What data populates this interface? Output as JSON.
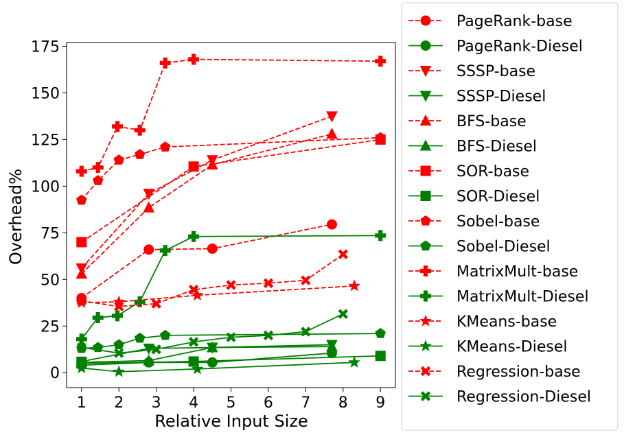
{
  "chart_data": {
    "type": "line",
    "title": "",
    "xlabel": "Relative Input Size",
    "ylabel": "Overhead%",
    "xlim": [
      0.6,
      9.4
    ],
    "ylim": [
      -8,
      177
    ],
    "xticks": [
      1,
      2,
      3,
      4,
      5,
      6,
      7,
      8,
      9
    ],
    "yticks": [
      0,
      25,
      50,
      75,
      100,
      125,
      150,
      175
    ],
    "grid": false,
    "legend_position": "outside-right",
    "series": [
      {
        "name": "PageRank-base",
        "color": "#ff0000",
        "dash": true,
        "marker": "circle",
        "x": [
          1,
          2.8,
          4.5,
          7.7
        ],
        "y": [
          40,
          66,
          66.5,
          79.5
        ]
      },
      {
        "name": "PageRank-Diesel",
        "color": "#008000",
        "dash": false,
        "marker": "circle",
        "x": [
          1,
          2.8,
          4.5,
          7.7
        ],
        "y": [
          4,
          5.5,
          5.5,
          10.5
        ]
      },
      {
        "name": "SSSP-base",
        "color": "#ff0000",
        "dash": true,
        "marker": "triangle-down",
        "x": [
          1,
          2.8,
          4.5,
          7.7
        ],
        "y": [
          56,
          96,
          114,
          137.5
        ]
      },
      {
        "name": "SSSP-Diesel",
        "color": "#008000",
        "dash": false,
        "marker": "triangle-down",
        "x": [
          1,
          2.8,
          4.5,
          7.7
        ],
        "y": [
          6,
          13,
          13.5,
          15
        ]
      },
      {
        "name": "BFS-base",
        "color": "#ff0000",
        "dash": true,
        "marker": "triangle-up",
        "x": [
          1,
          2.8,
          4.5,
          7.7
        ],
        "y": [
          53,
          88.5,
          111.5,
          128
        ]
      },
      {
        "name": "BFS-Diesel",
        "color": "#008000",
        "dash": false,
        "marker": "triangle-up",
        "x": [
          1,
          2.8,
          4.5,
          7.7
        ],
        "y": [
          5.5,
          6.5,
          13.5,
          14
        ]
      },
      {
        "name": "SOR-base",
        "color": "#ff0000",
        "dash": true,
        "marker": "square",
        "x": [
          1,
          4,
          9
        ],
        "y": [
          70,
          110.5,
          125
        ]
      },
      {
        "name": "SOR-Diesel",
        "color": "#008000",
        "dash": false,
        "marker": "square",
        "x": [
          1,
          4,
          9
        ],
        "y": [
          5,
          6,
          9
        ]
      },
      {
        "name": "Sobel-base",
        "color": "#ff0000",
        "dash": true,
        "marker": "pentagon",
        "x": [
          1,
          1.44,
          2,
          2.56,
          3.24,
          9
        ],
        "y": [
          92.5,
          103,
          114,
          117,
          121,
          126
        ]
      },
      {
        "name": "Sobel-Diesel",
        "color": "#008000",
        "dash": false,
        "marker": "pentagon",
        "x": [
          1,
          1.44,
          2,
          2.56,
          3.24,
          9
        ],
        "y": [
          13,
          13.5,
          15,
          18.5,
          20,
          21
        ]
      },
      {
        "name": "MatrixMult-base",
        "color": "#ff0000",
        "dash": true,
        "marker": "plus",
        "x": [
          1,
          1.44,
          1.96,
          2.56,
          3.24,
          4,
          9
        ],
        "y": [
          108,
          110,
          132,
          130,
          166,
          168,
          167
        ]
      },
      {
        "name": "MatrixMult-Diesel",
        "color": "#008000",
        "dash": false,
        "marker": "plus",
        "x": [
          1,
          1.44,
          1.96,
          2.56,
          3.24,
          4,
          9
        ],
        "y": [
          18,
          29.5,
          30.5,
          38,
          65.5,
          73,
          73.5
        ]
      },
      {
        "name": "KMeans-base",
        "color": "#ff0000",
        "dash": true,
        "marker": "star",
        "x": [
          1,
          2,
          4.1,
          8.3
        ],
        "y": [
          37.5,
          38,
          41.5,
          46.5
        ]
      },
      {
        "name": "KMeans-Diesel",
        "color": "#008000",
        "dash": false,
        "marker": "star",
        "x": [
          1,
          2,
          4.1,
          8.3
        ],
        "y": [
          2.5,
          0.5,
          2,
          5.5
        ]
      },
      {
        "name": "Regression-base",
        "color": "#ff0000",
        "dash": true,
        "marker": "x",
        "x": [
          1,
          2,
          3,
          4,
          5,
          6,
          7,
          8
        ],
        "y": [
          38.5,
          35.5,
          37,
          44.5,
          47,
          48,
          49.5,
          63.5
        ]
      },
      {
        "name": "Regression-Diesel",
        "color": "#008000",
        "dash": false,
        "marker": "x",
        "x": [
          1,
          2,
          3,
          4,
          5,
          6,
          7,
          8
        ],
        "y": [
          13.5,
          10.5,
          12.5,
          16.5,
          19,
          20,
          22,
          31.5
        ]
      }
    ]
  }
}
